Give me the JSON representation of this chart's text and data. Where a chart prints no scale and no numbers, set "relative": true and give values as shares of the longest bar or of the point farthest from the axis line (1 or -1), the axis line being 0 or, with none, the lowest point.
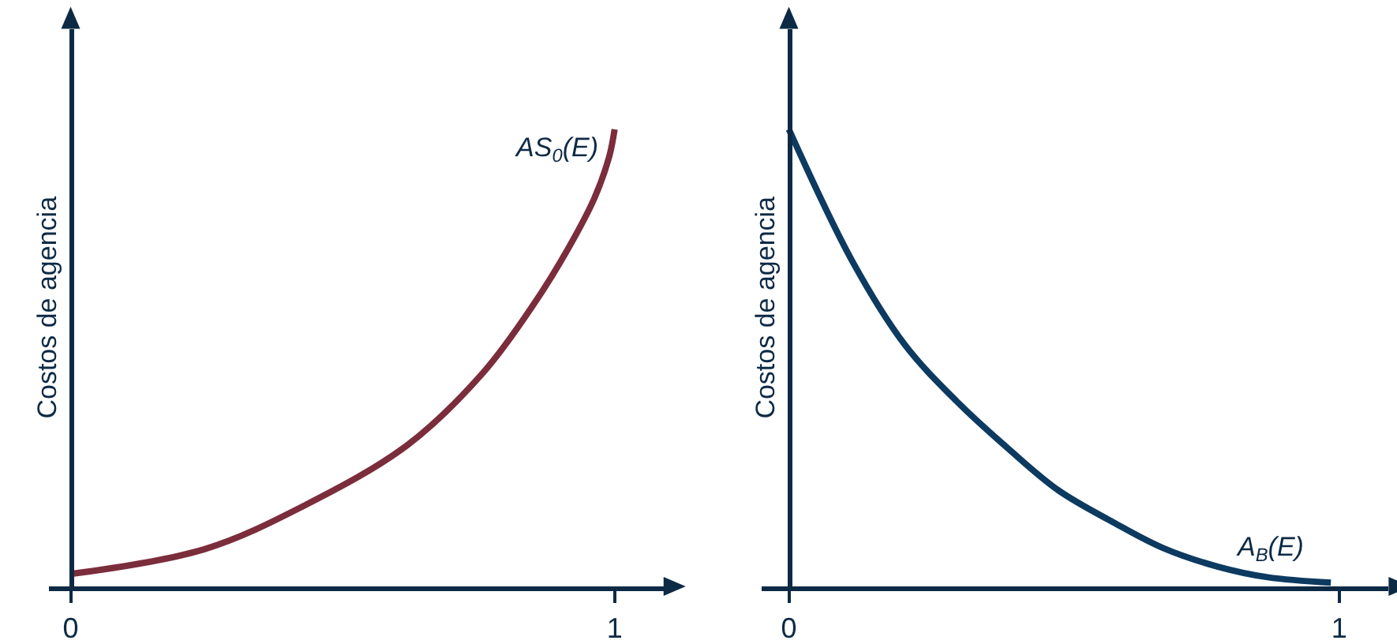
{
  "chart_data": [
    {
      "type": "line",
      "relative": true,
      "ylabel": "Costos de agencia",
      "xlim": [
        -0.04,
        1.09
      ],
      "xticks": [
        0,
        1
      ],
      "x": [
        0,
        0.245,
        0.43,
        0.62,
        0.76,
        0.85,
        0.915,
        0.963,
        0.99,
        1.0
      ],
      "series": [
        {
          "name": "AS$_{0}$(E)",
          "color": "#7b2d3b",
          "values": [
            0.027,
            0.081,
            0.177,
            0.31,
            0.47,
            0.615,
            0.74,
            0.85,
            0.94,
            1
          ]
        }
      ]
    },
    {
      "type": "line",
      "relative": true,
      "ylabel": "Costos de agencia",
      "xlim": [
        -0.05,
        1.09
      ],
      "xticks": [
        0,
        1
      ],
      "x": [
        0,
        0.116,
        0.21,
        0.305,
        0.4,
        0.49,
        0.59,
        0.68,
        0.78,
        0.87,
        0.985
      ],
      "series": [
        {
          "name": "A$_{B}$(E)",
          "color": "#0d3a60",
          "values": [
            1,
            0.71,
            0.53,
            0.405,
            0.3,
            0.21,
            0.14,
            0.084,
            0.043,
            0.02,
            0.008
          ]
        }
      ]
    }
  ]
}
